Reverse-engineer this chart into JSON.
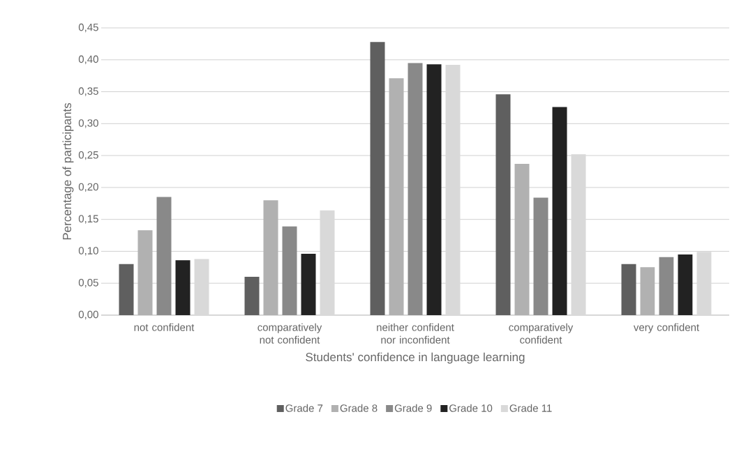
{
  "chart_data": {
    "type": "bar",
    "xlabel": "Students' confidence in language learning",
    "ylabel": "Percentage of participants",
    "categories": [
      "not confident",
      "comparatively not confident",
      "neither confident nor inconfident",
      "comparatively confident",
      "very confident"
    ],
    "series": [
      {
        "name": "Grade 7",
        "color": "#5f5f5f",
        "values": [
          0.08,
          0.06,
          0.428,
          0.346,
          0.08
        ]
      },
      {
        "name": "Grade 8",
        "color": "#b1b1b1",
        "values": [
          0.133,
          0.18,
          0.371,
          0.237,
          0.075
        ]
      },
      {
        "name": "Grade 9",
        "color": "#898989",
        "values": [
          0.185,
          0.139,
          0.395,
          0.184,
          0.091
        ]
      },
      {
        "name": "Grade 10",
        "color": "#222222",
        "values": [
          0.086,
          0.096,
          0.393,
          0.326,
          0.095
        ]
      },
      {
        "name": "Grade 11",
        "color": "#d9d9d9",
        "values": [
          0.088,
          0.164,
          0.392,
          0.252,
          0.099
        ]
      }
    ],
    "ylim": [
      0,
      0.45
    ],
    "yticks": [
      {
        "value": 0,
        "label": "0,00"
      },
      {
        "value": 0.05,
        "label": "0,05"
      },
      {
        "value": 0.1,
        "label": "0,10"
      },
      {
        "value": 0.15,
        "label": "0,15"
      },
      {
        "value": 0.2,
        "label": "0,20"
      },
      {
        "value": 0.25,
        "label": "0,25"
      },
      {
        "value": 0.3,
        "label": "0,30"
      },
      {
        "value": 0.35,
        "label": "0,35"
      },
      {
        "value": 0.4,
        "label": "0,40"
      },
      {
        "value": 0.45,
        "label": "0,45"
      }
    ],
    "grid": "y",
    "legend": "bottom"
  }
}
